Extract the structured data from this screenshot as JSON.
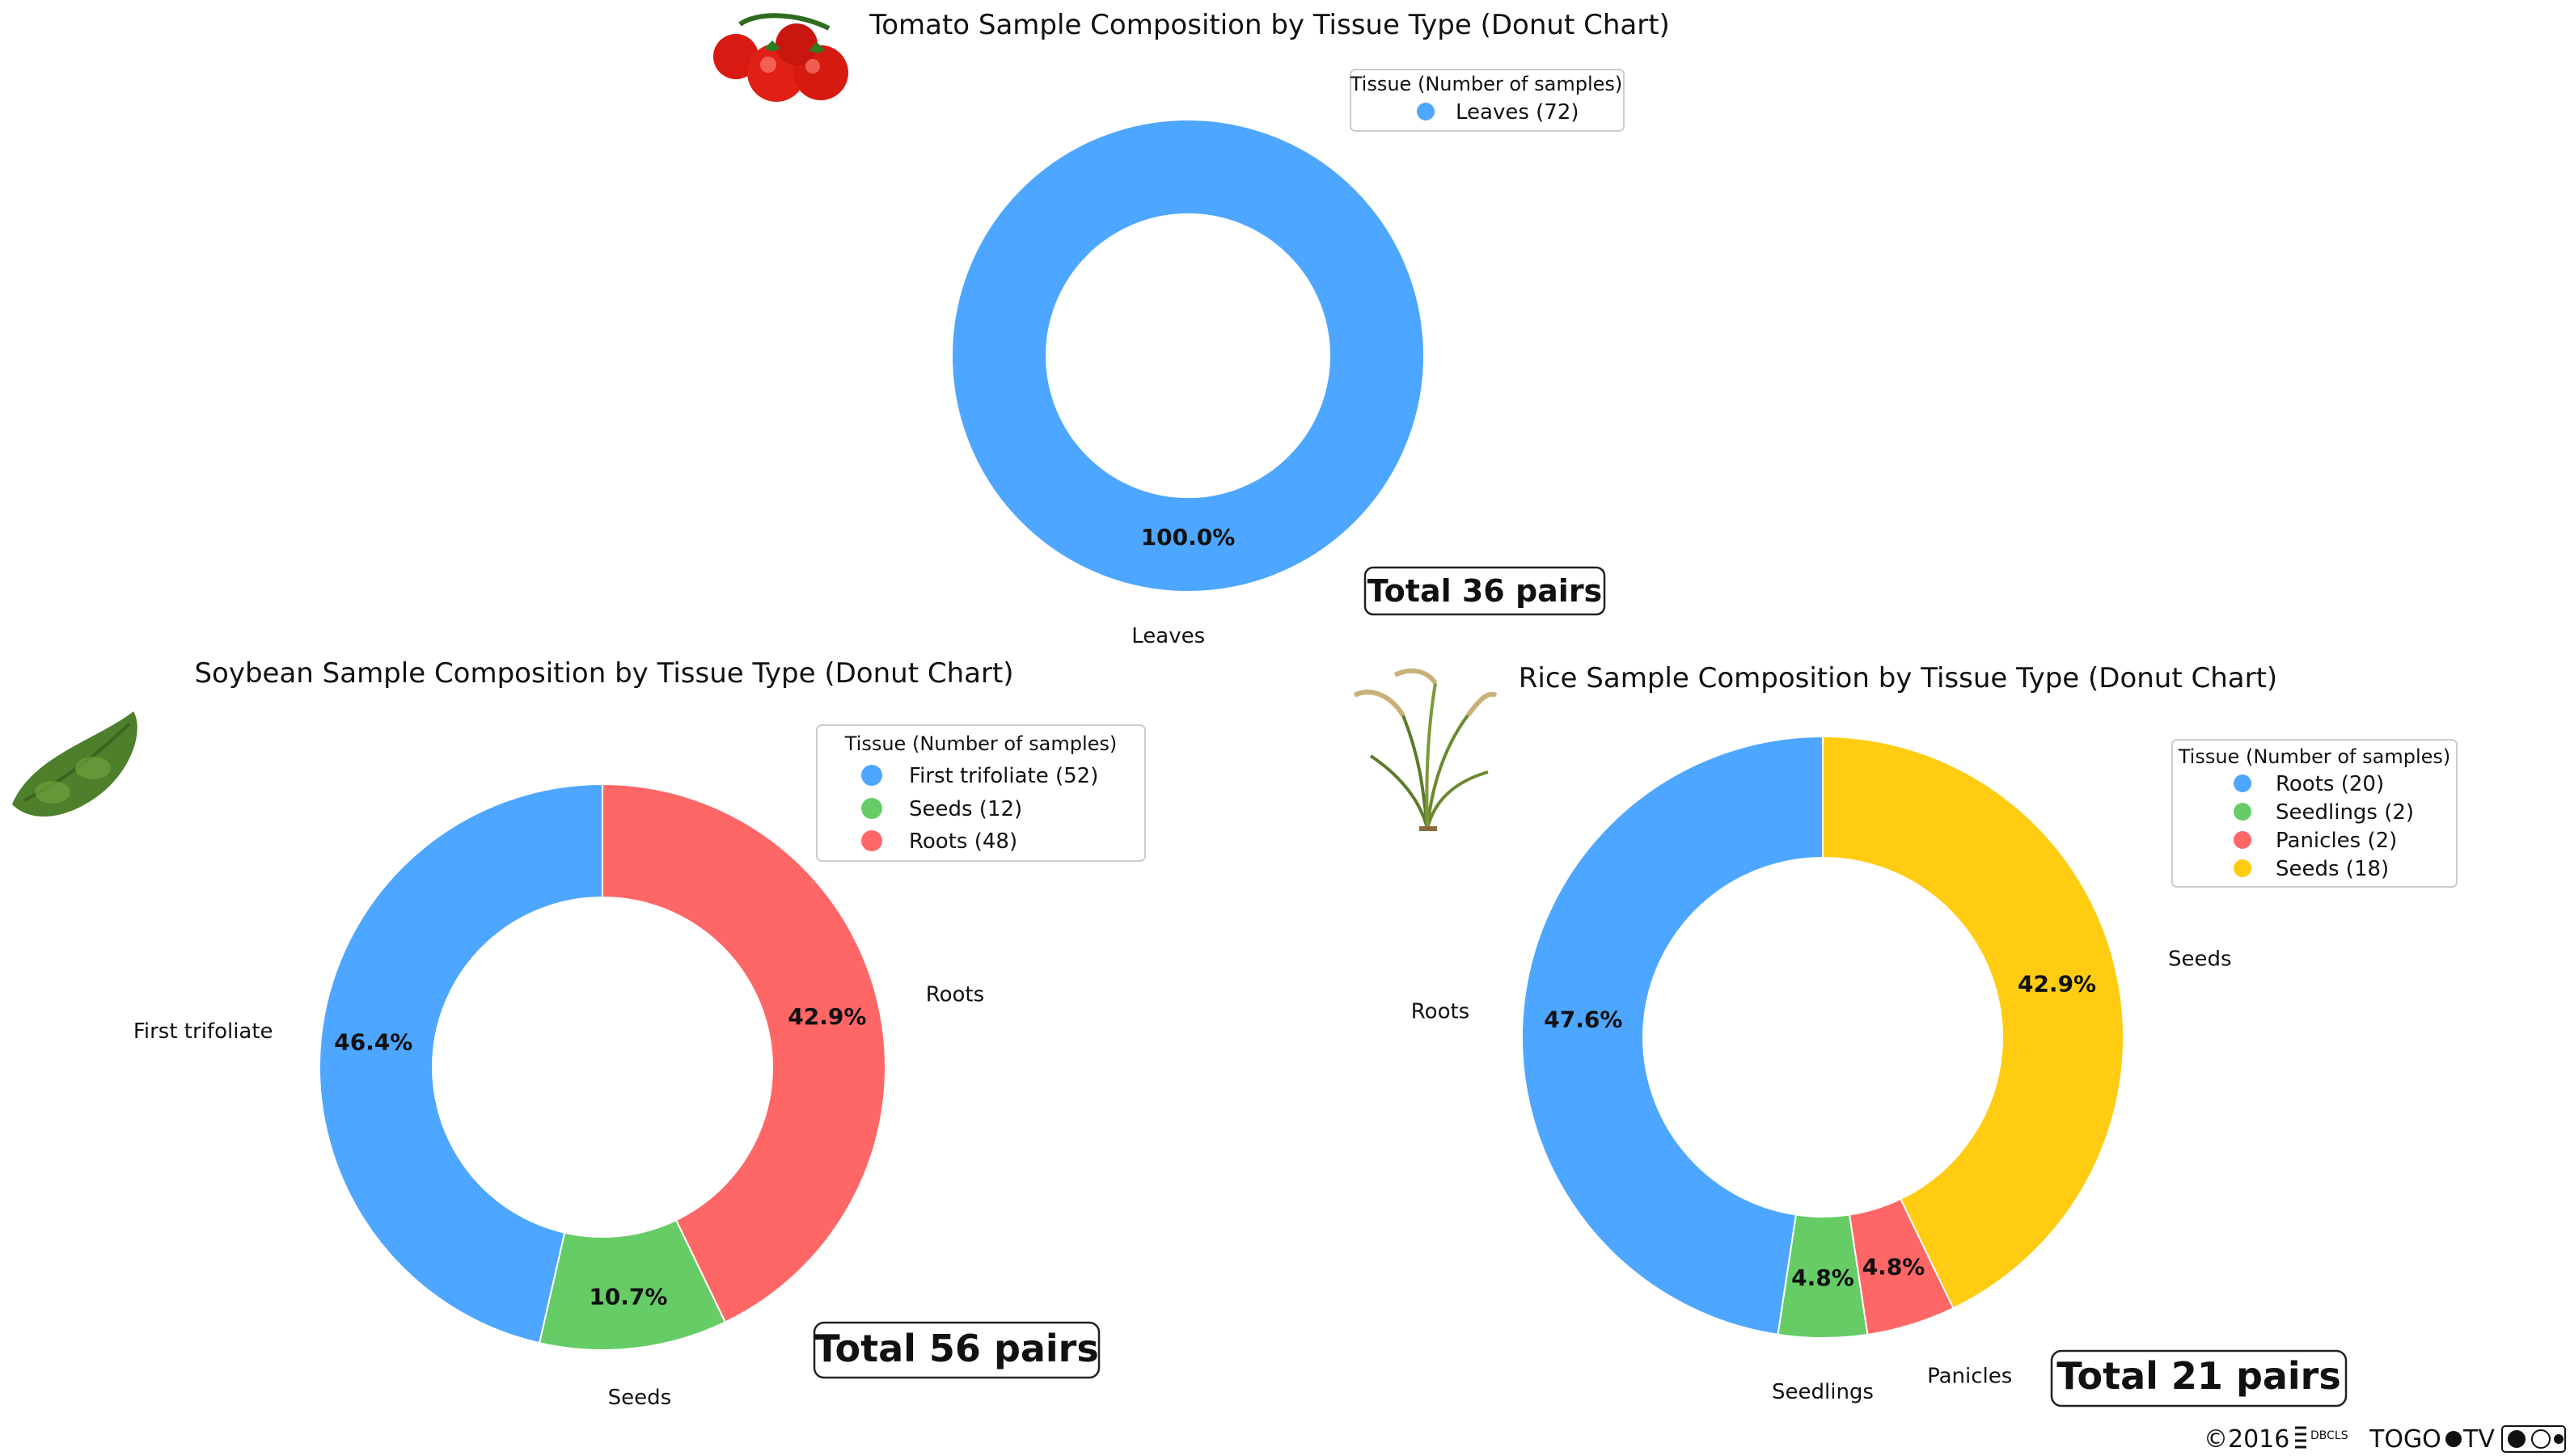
{
  "chart_data": [
    {
      "type": "pie",
      "variant": "donut",
      "title": "Tomato Sample Composition by Tissue Type (Donut Chart)",
      "legend_title": "Tissue (Number of samples)",
      "categories": [
        "Leaves"
      ],
      "values": [
        72
      ],
      "legend_entries": [
        "Leaves (72)"
      ],
      "percent_labels": [
        "100.0%"
      ],
      "colors": [
        "#4da6ff"
      ],
      "total_label": "Total 36 pairs",
      "legend_position": "top-right"
    },
    {
      "type": "pie",
      "variant": "donut",
      "title": "Soybean Sample Composition by Tissue Type (Donut Chart)",
      "legend_title": "Tissue (Number of samples)",
      "categories": [
        "First trifoliate",
        "Seeds",
        "Roots"
      ],
      "values": [
        52,
        12,
        48
      ],
      "legend_entries": [
        "First trifoliate (52)",
        "Seeds (12)",
        "Roots (48)"
      ],
      "percent_labels": [
        "46.4%",
        "10.7%",
        "42.9%"
      ],
      "colors": [
        "#4da6ff",
        "#66cc66",
        "#ff6666"
      ],
      "total_label": "Total 56 pairs",
      "legend_position": "top-right"
    },
    {
      "type": "pie",
      "variant": "donut",
      "title": "Rice Sample Composition by Tissue Type (Donut Chart)",
      "legend_title": "Tissue (Number of samples)",
      "categories": [
        "Roots",
        "Seedlings",
        "Panicles",
        "Seeds"
      ],
      "values": [
        20,
        2,
        2,
        18
      ],
      "legend_entries": [
        "Roots (20)",
        "Seedlings (2)",
        "Panicles (2)",
        "Seeds (18)"
      ],
      "percent_labels": [
        "47.6%",
        "4.8%",
        "4.8%",
        "42.9%"
      ],
      "colors": [
        "#4da6ff",
        "#66cc66",
        "#ff6666",
        "#ffcc11"
      ],
      "total_label": "Total 21 pairs",
      "legend_position": "top-right"
    }
  ],
  "footer": {
    "copyright": "©2016",
    "brand_small": "DBCLS",
    "brand": "TOGO",
    "brand_suffix": "TV"
  },
  "icons": [
    "tomato-icon",
    "soybean-icon",
    "rice-plant-icon",
    "creative-commons-icon"
  ]
}
